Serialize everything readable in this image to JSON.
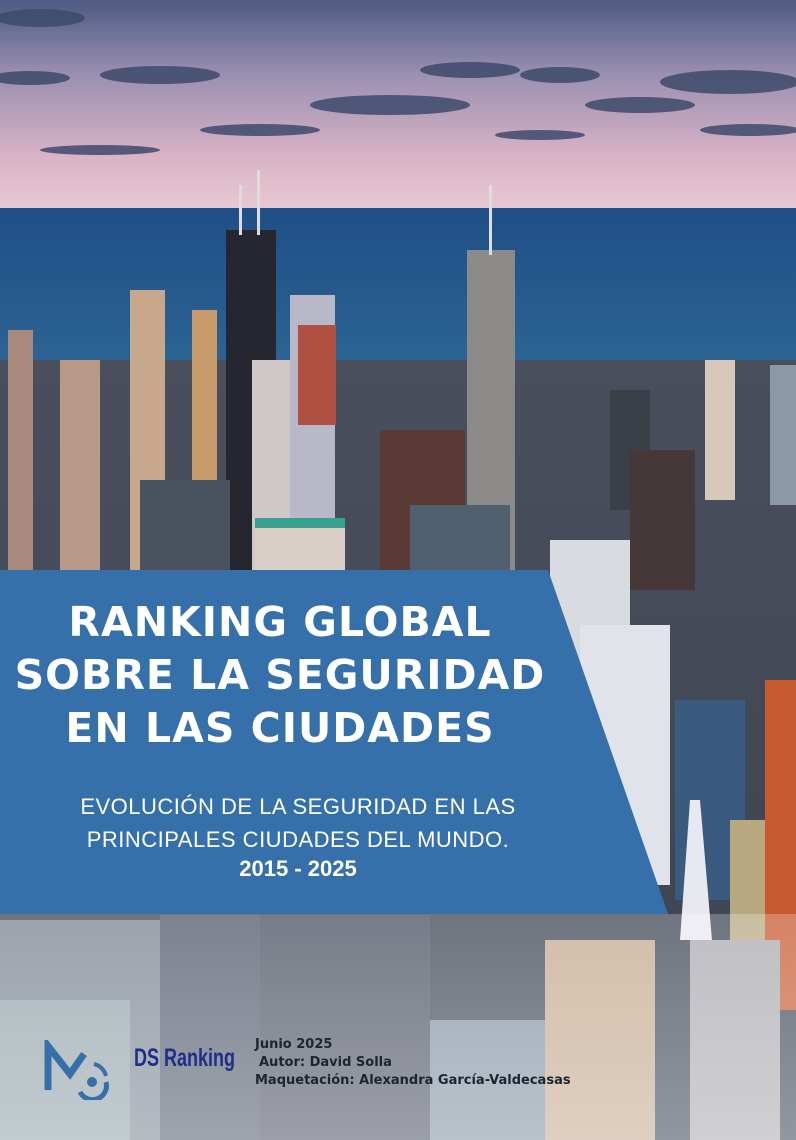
{
  "cover": {
    "title_lines": [
      "RANKING GLOBAL",
      "SOBRE LA SEGURIDAD",
      "EN LAS CIUDADES"
    ],
    "subtitle_lines": [
      "EVOLUCIÓN DE LA SEGURIDAD EN LAS",
      "PRINCIPALES CIUDADES DEL MUNDO."
    ],
    "years": "2015 - 2025",
    "panel_color": "#3670aa"
  },
  "footer": {
    "brand": "DS Ranking",
    "date": "Junio 2025",
    "author": "Autor: David Solla",
    "layout": "Maquetación: Alexandra García-Valdecasas",
    "logo_icon": "mc-logo-icon",
    "brand_color": "#1d2f8a"
  }
}
